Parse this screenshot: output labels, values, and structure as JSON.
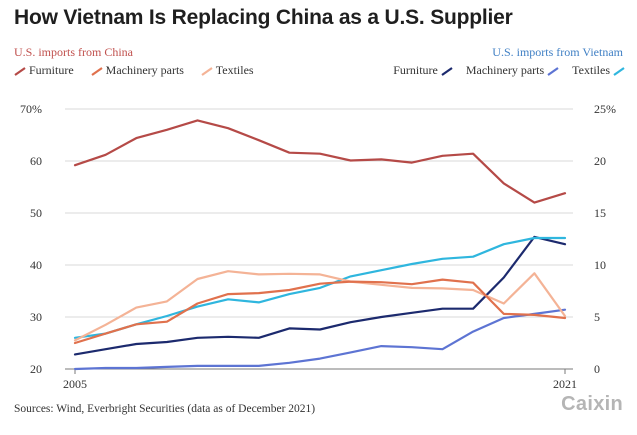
{
  "chart_data": {
    "type": "line",
    "title": "How Vietnam Is Replacing China as a U.S. Supplier",
    "x": [
      2005,
      2006,
      2007,
      2008,
      2009,
      2010,
      2011,
      2012,
      2013,
      2014,
      2015,
      2016,
      2017,
      2018,
      2019,
      2020,
      2021
    ],
    "x_tick_labels": [
      "2005",
      "2021"
    ],
    "left_axis": {
      "title": "U.S. imports from China",
      "ylim": [
        20,
        70
      ],
      "ticks": [
        "20",
        "30",
        "40",
        "50",
        "60",
        "70%"
      ],
      "tick_values": [
        20,
        30,
        40,
        50,
        60,
        70
      ]
    },
    "right_axis": {
      "title": "U.S. imports from Vietnam",
      "ylim": [
        0,
        25
      ],
      "ticks": [
        "0",
        "5",
        "10",
        "15",
        "20",
        "25%"
      ],
      "tick_values": [
        0,
        5,
        10,
        15,
        20,
        25
      ]
    },
    "series": [
      {
        "name": "Furniture",
        "group": "china",
        "axis": "left",
        "color": "#b54a47",
        "values": [
          59.2,
          61.2,
          64.4,
          66.0,
          67.8,
          66.3,
          64.0,
          61.6,
          61.4,
          60.1,
          60.3,
          59.7,
          61.0,
          61.4,
          55.7,
          52.0,
          53.8
        ]
      },
      {
        "name": "Machinery parts",
        "group": "china",
        "axis": "left",
        "color": "#e0714d",
        "values": [
          25.0,
          26.8,
          28.6,
          29.1,
          32.6,
          34.4,
          34.6,
          35.2,
          36.4,
          36.8,
          36.7,
          36.3,
          37.2,
          36.6,
          30.6,
          30.4,
          29.8
        ]
      },
      {
        "name": "Textiles",
        "group": "china",
        "axis": "left",
        "color": "#f4b396",
        "values": [
          25.5,
          28.5,
          31.8,
          33.0,
          37.3,
          38.8,
          38.2,
          38.3,
          38.2,
          36.8,
          36.2,
          35.6,
          35.5,
          35.2,
          32.6,
          38.4,
          30.2
        ]
      },
      {
        "name": "Furniture",
        "group": "vietnam",
        "axis": "right",
        "color": "#1c2a6e",
        "values": [
          1.4,
          1.9,
          2.4,
          2.6,
          3.0,
          3.1,
          3.0,
          3.9,
          3.8,
          4.5,
          5.0,
          5.4,
          5.8,
          5.8,
          8.8,
          12.7,
          12.0
        ]
      },
      {
        "name": "Machinery parts",
        "group": "vietnam",
        "axis": "right",
        "color": "#5d74d3",
        "values": [
          0.0,
          0.1,
          0.1,
          0.2,
          0.3,
          0.3,
          0.3,
          0.6,
          1.0,
          1.6,
          2.2,
          2.1,
          1.9,
          3.6,
          4.9,
          5.3,
          5.7
        ]
      },
      {
        "name": "Textiles",
        "group": "vietnam",
        "axis": "right",
        "color": "#2fb6de",
        "values": [
          3.0,
          3.4,
          4.3,
          5.1,
          6.0,
          6.7,
          6.4,
          7.2,
          7.8,
          8.9,
          9.5,
          10.1,
          10.6,
          10.8,
          12.0,
          12.6,
          12.6
        ]
      }
    ]
  },
  "title": "How Vietnam Is Replacing China as a U.S. Supplier",
  "group_left_title": "U.S. imports from China",
  "group_right_title": "U.S. imports from Vietnam",
  "footer": "Sources: Wind, Everbright Securities (data as of December 2021)",
  "logo": "Caixin"
}
